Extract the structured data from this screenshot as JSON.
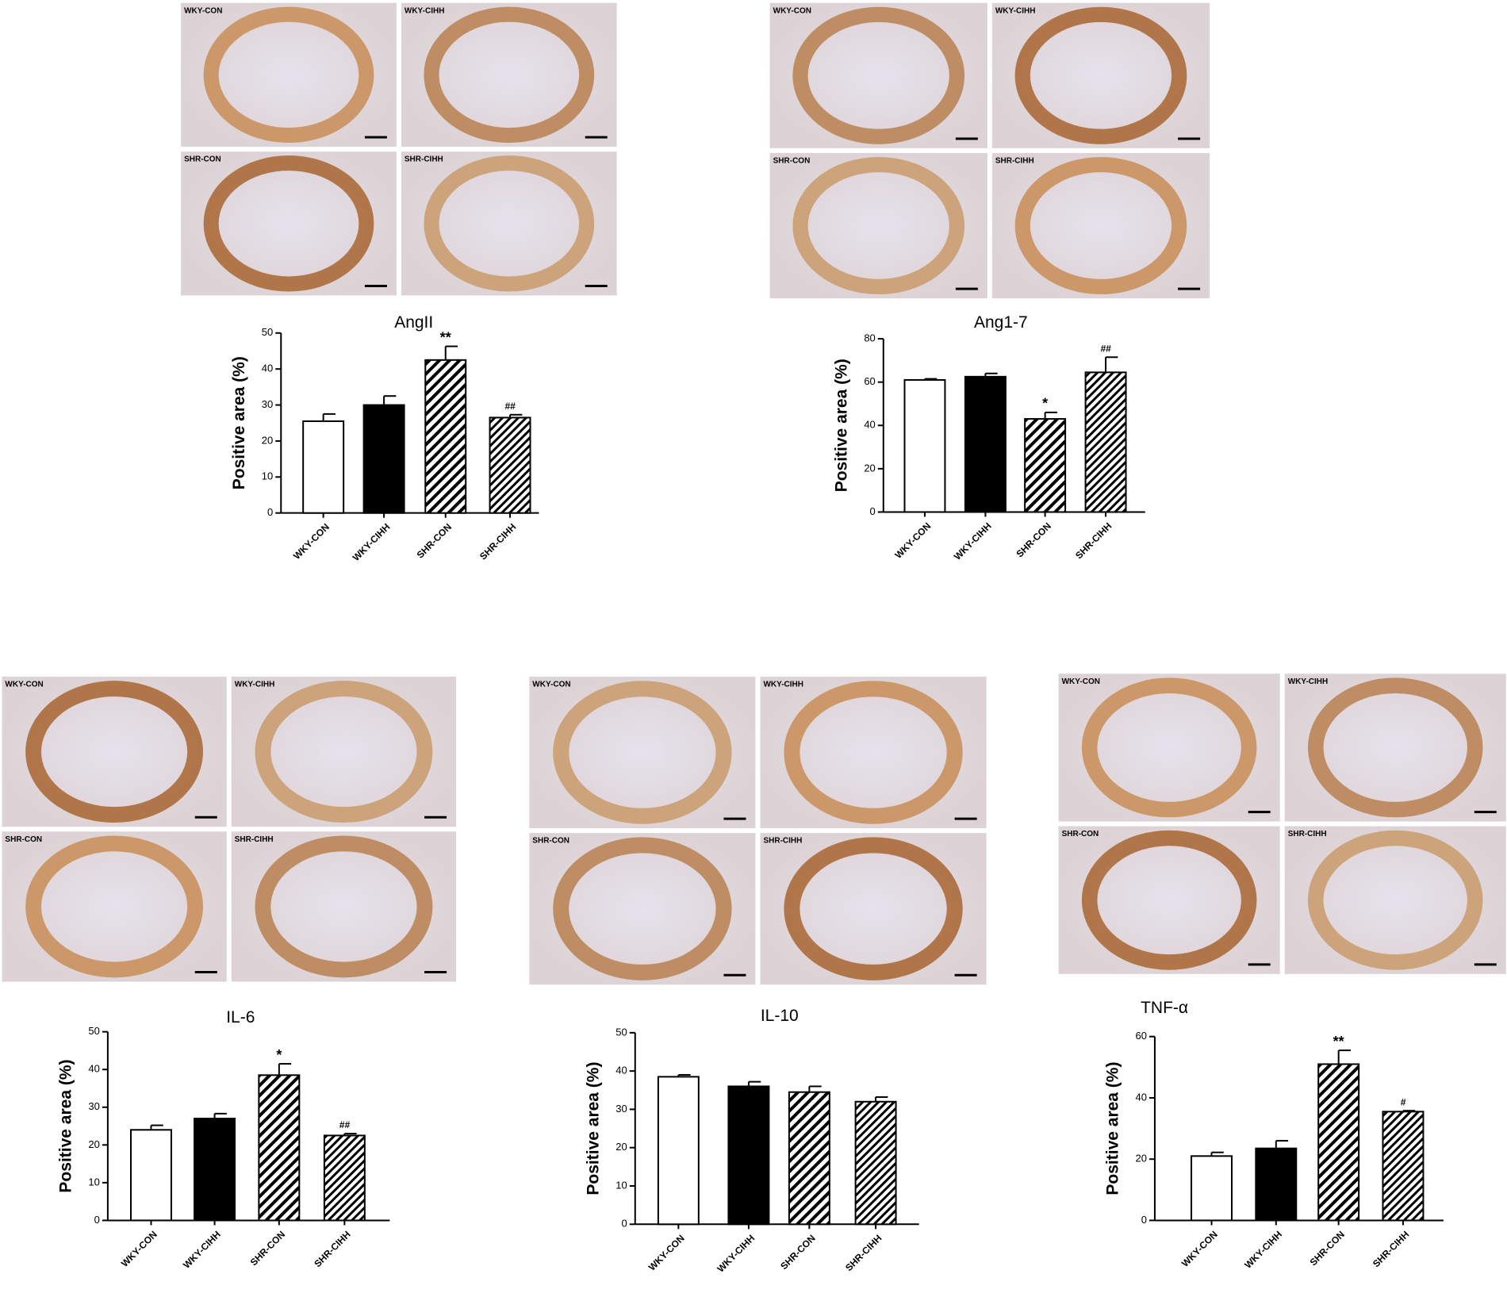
{
  "chart_data": [
    {
      "type": "bar",
      "title": "AngII",
      "ylabel": "Positive area (%)",
      "categories": [
        "WKY-CON",
        "WKY-CIHH",
        "SHR-CON",
        "SHR-CIHH"
      ],
      "values": [
        25.5,
        30,
        42.5,
        26.5
      ],
      "errors": [
        2,
        2.5,
        3.8,
        0.8
      ],
      "annotations": [
        {
          "index": 2,
          "text": "**"
        },
        {
          "index": 3,
          "text": "##"
        }
      ],
      "bar_styles": [
        "white",
        "black",
        "hatch",
        "hatch-dense"
      ],
      "ylim": [
        0,
        50
      ],
      "yticks": [
        0,
        10,
        20,
        30,
        40,
        50
      ],
      "image_labels": [
        "WKY-CON",
        "WKY-CIHH",
        "SHR-CON",
        "SHR-CIHH"
      ]
    },
    {
      "type": "bar",
      "title": "Ang1-7",
      "ylabel": "Positive area (%)",
      "categories": [
        "WKY-CON",
        "WKY-CIHH",
        "SHR-CON",
        "SHR-CIHH"
      ],
      "values": [
        61,
        62.5,
        43,
        64.5
      ],
      "errors": [
        0.5,
        1.5,
        3,
        7
      ],
      "annotations": [
        {
          "index": 2,
          "text": "*"
        },
        {
          "index": 3,
          "text": "##"
        }
      ],
      "bar_styles": [
        "white",
        "black",
        "hatch",
        "hatch-dense"
      ],
      "ylim": [
        0,
        80
      ],
      "yticks": [
        0,
        20,
        40,
        60,
        80
      ],
      "image_labels": [
        "WKY-CON",
        "WKY-CIHH",
        "SHR-CON",
        "SHR-CIHH"
      ]
    },
    {
      "type": "bar",
      "title": "IL-6",
      "ylabel": "Positive area (%)",
      "categories": [
        "WKY-CON",
        "WKY-CIHH",
        "SHR-CON",
        "SHR-CIHH"
      ],
      "values": [
        24,
        27,
        38.5,
        22.5
      ],
      "errors": [
        1.2,
        1.3,
        3,
        0.5
      ],
      "annotations": [
        {
          "index": 2,
          "text": "*"
        },
        {
          "index": 3,
          "text": "##"
        }
      ],
      "bar_styles": [
        "white",
        "black",
        "hatch",
        "hatch-dense"
      ],
      "ylim": [
        0,
        50
      ],
      "yticks": [
        0,
        10,
        20,
        30,
        40,
        50
      ],
      "image_labels": [
        "WKY-CON",
        "WKY-CIHH",
        "SHR-CON",
        "SHR-CIHH"
      ]
    },
    {
      "type": "bar",
      "title": "IL-10",
      "ylabel": "Positive area (%)",
      "categories": [
        "WKY-CON",
        "WKY-CIHH",
        "SHR-CON",
        "SHR-CIHH"
      ],
      "values": [
        38.5,
        36,
        34.5,
        32
      ],
      "errors": [
        0.5,
        1.2,
        1.5,
        1.2
      ],
      "annotations": [],
      "bar_styles": [
        "white",
        "black",
        "hatch",
        "hatch-dense"
      ],
      "ylim": [
        0,
        50
      ],
      "yticks": [
        0,
        10,
        20,
        30,
        40,
        50
      ],
      "image_labels": [
        "WKY-CON",
        "WKY-CIHH",
        "SHR-CON",
        "SHR-CIHH"
      ]
    },
    {
      "type": "bar",
      "title": "TNF-α",
      "ylabel": "Positive area (%)",
      "categories": [
        "WKY-CON",
        "WKY-CIHH",
        "SHR-CON",
        "SHR-CIHH"
      ],
      "values": [
        21,
        23.5,
        51,
        35.5
      ],
      "errors": [
        1.2,
        2.5,
        4.5,
        0.3
      ],
      "annotations": [
        {
          "index": 2,
          "text": "**"
        },
        {
          "index": 3,
          "text": "#"
        }
      ],
      "bar_styles": [
        "white",
        "black",
        "hatch",
        "hatch-dense"
      ],
      "ylim": [
        0,
        60
      ],
      "yticks": [
        0,
        20,
        40,
        60
      ],
      "image_labels": [
        "WKY-CON",
        "WKY-CIHH",
        "SHR-CON",
        "SHR-CIHH"
      ]
    }
  ]
}
